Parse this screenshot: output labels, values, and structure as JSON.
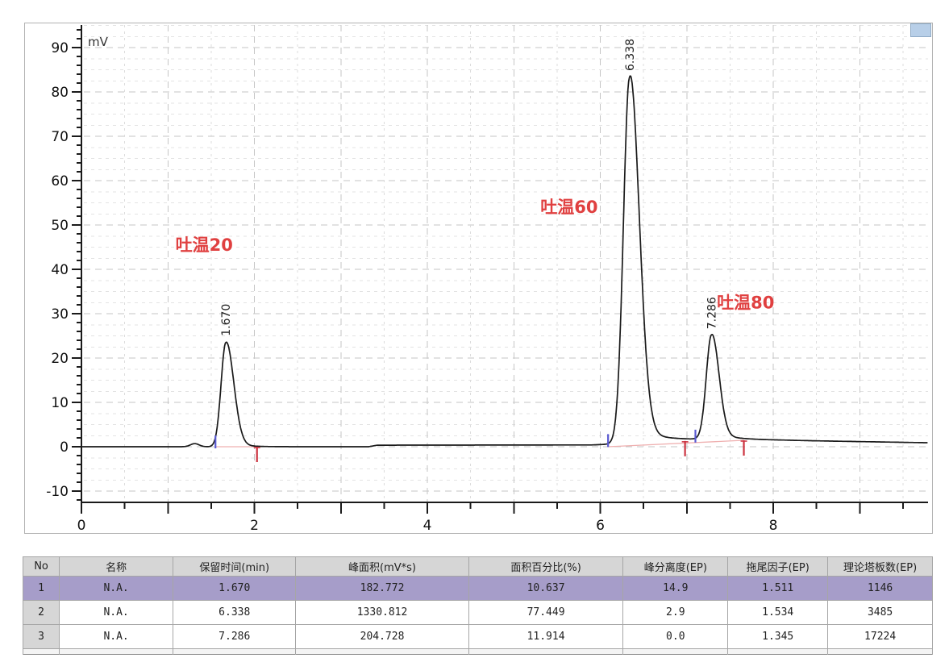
{
  "chart_data": {
    "type": "line",
    "title": "",
    "xlabel": "",
    "ylabel": "mV",
    "x_range": [
      0,
      9.79
    ],
    "y_view": [
      -12.6,
      95.1
    ],
    "x_axis": {
      "minor_step": 0.5,
      "major_step": 1,
      "label_values": [
        0,
        2,
        4,
        6,
        8
      ]
    },
    "y_axis": {
      "minor_step": 2,
      "major_step": 10,
      "label_min": -10,
      "label_max": 90,
      "label_step": 10
    },
    "grid": {
      "h_minor_step": 2.5,
      "h_major_step": 10,
      "v_minor_step": 0.5,
      "v_major_step": 1,
      "grid_on": true
    },
    "peaks": [
      {
        "label": "1.670",
        "rt": 1.67,
        "height_mV": 23.5,
        "sigma_left": 0.055,
        "sigma_right": 0.09,
        "tail_frac": 0.05,
        "tail_tau": 0.15
      },
      {
        "label": "6.338",
        "rt": 6.338,
        "height_mV": 82.5,
        "sigma_left": 0.07,
        "sigma_right": 0.11,
        "tail_frac": 0.05,
        "tail_tau": 0.3
      },
      {
        "label": "7.286",
        "rt": 7.286,
        "height_mV": 23.5,
        "sigma_left": 0.06,
        "sigma_right": 0.085,
        "tail_frac": 0.06,
        "tail_tau": 0.25
      }
    ],
    "baseline_bumps": [
      {
        "x": 1.31,
        "h": 0.7,
        "s": 0.05
      }
    ],
    "baseline_drift": [
      [
        0,
        0
      ],
      [
        3.32,
        0
      ],
      [
        3.42,
        0.35
      ],
      [
        5.9,
        0.4
      ],
      [
        6.5,
        0.9
      ],
      [
        7.25,
        1.55
      ],
      [
        8.1,
        1.45
      ],
      [
        9.79,
        0.9
      ]
    ],
    "annotations": [
      {
        "text": "吐温20",
        "x": 1.42,
        "y": 45.5
      },
      {
        "text": "吐温60",
        "x": 5.64,
        "y": 54.0
      },
      {
        "text": "吐温80",
        "x": 7.68,
        "y": 32.5
      }
    ],
    "integration": {
      "baseline_segments": [
        {
          "x1": 1.55,
          "v1": 0,
          "x2": 2.03,
          "v2": 0
        },
        {
          "x1": 6.09,
          "v1": 0,
          "x2": 7.66,
          "v2": 1.45
        }
      ],
      "peak_start_markers": [
        {
          "x": 1.55,
          "v": 0
        },
        {
          "x": 6.09,
          "v": 0.3
        },
        {
          "x": 7.1,
          "v": 1.3
        }
      ],
      "peak_end_markers": [
        {
          "x": 2.03,
          "v": 0
        },
        {
          "x": 6.98,
          "v": 1.3
        },
        {
          "x": 7.66,
          "v": 1.45
        }
      ]
    },
    "colors": {
      "curve": "#1a1a1a",
      "annotation_red": "#e04040",
      "grid_major": "#c6c6c6",
      "grid_minor": "#e3e3e3",
      "axis": "#1a1a1a",
      "integration_baseline": "#efb0b0",
      "start_marker_blue": "#5a5ad2",
      "end_marker_red": "#cc3340",
      "frame_border": "#b2b2b2",
      "scroll_thumb": "#b8cfe8"
    }
  },
  "table": {
    "columns": [
      "No",
      "名称",
      "保留时间(min)",
      "峰面积(mV*s)",
      "面积百分比(%)",
      "峰分离度(EP)",
      "拖尾因子(EP)",
      "理论塔板数(EP)"
    ],
    "rows": [
      [
        "1",
        "N.A.",
        "1.670",
        "182.772",
        "10.637",
        "14.9",
        "1.511",
        "1146"
      ],
      [
        "2",
        "N.A.",
        "6.338",
        "1330.812",
        "77.449",
        "2.9",
        "1.534",
        "3485"
      ],
      [
        "3",
        "N.A.",
        "7.286",
        "204.728",
        "11.914",
        "0.0",
        "1.345",
        "17224"
      ]
    ],
    "selected_row_index": 0,
    "colors": {
      "header_bg": "#d6d6d6",
      "selected_bg": "#a69dc9",
      "no_col_bg": "#d6d6d6",
      "border": "#a6a6a6"
    }
  }
}
